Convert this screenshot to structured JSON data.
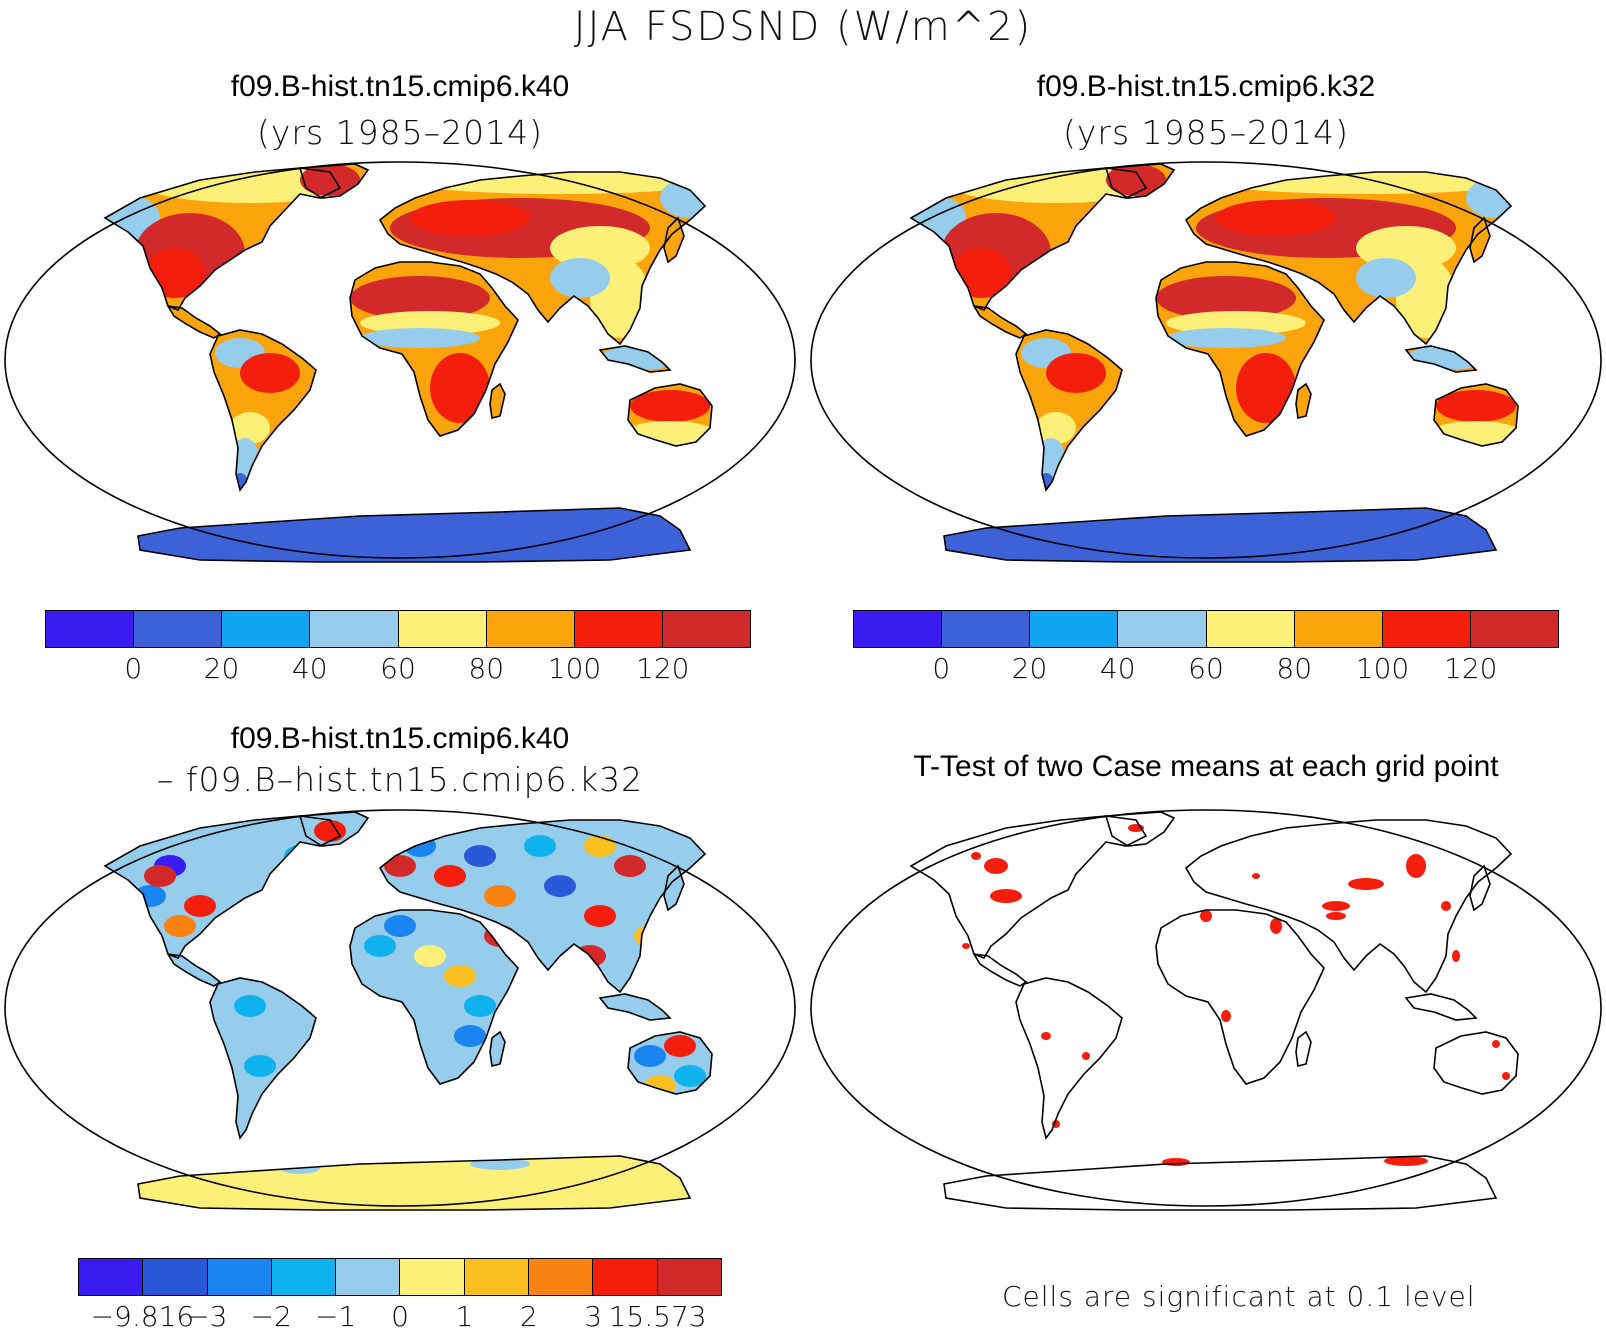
{
  "title": "JJA FSDSND (W/m^2)",
  "panels": [
    {
      "title": "f09.B-hist.tn15.cmip6.k40",
      "subtitle": "(yrs 1985–2014)"
    },
    {
      "title": "f09.B-hist.tn15.cmip6.k32",
      "subtitle": "(yrs 1985–2014)"
    },
    {
      "title": "f09.B-hist.tn15.cmip6.k40",
      "subtitle": "– f09.B–hist.tn15.cmip6.k32"
    },
    {
      "title": "T-Test of two Case means at each grid point",
      "subtitle": ""
    }
  ],
  "colorbar_abs": {
    "colors": [
      "#3a1cf0",
      "#3d62d8",
      "#0fa5f0",
      "#96ccec",
      "#fdf078",
      "#fca40c",
      "#f41e0c",
      "#d22a2a"
    ],
    "labels": [
      "0",
      "20",
      "40",
      "60",
      "80",
      "100",
      "120"
    ]
  },
  "colorbar_diff": {
    "colors": [
      "#3a1cf0",
      "#2a58d8",
      "#1a84f0",
      "#10b2ee",
      "#96ccec",
      "#fdf078",
      "#fbc020",
      "#fa8210",
      "#f41e0c",
      "#d22a2a"
    ],
    "labels": [
      "−9.816",
      "−3",
      "−2",
      "−1",
      "0",
      "1",
      "2",
      "3",
      "15.573"
    ]
  },
  "significance_note": "Cells are significant at 0.1 level",
  "map_colors": {
    "hot": "#d22a2a",
    "red": "#f41e0c",
    "orange": "#fca40c",
    "yellow": "#fdf078",
    "lightblue": "#96ccec",
    "blue": "#3d62d8",
    "sig": "#f41e0c"
  }
}
